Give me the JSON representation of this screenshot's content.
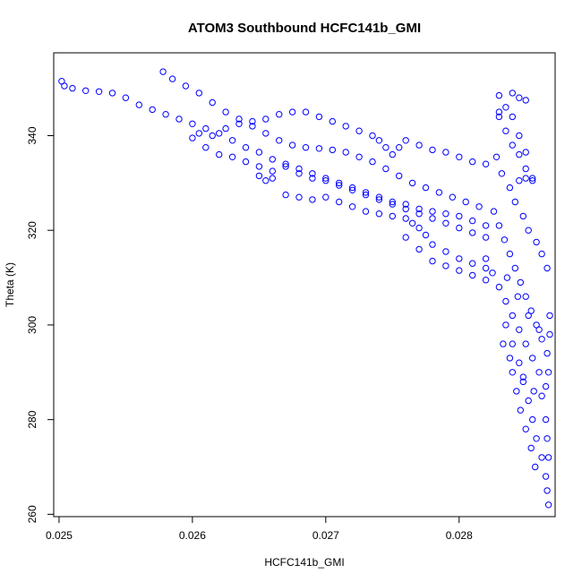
{
  "chart_data": {
    "type": "scatter",
    "title": "ATOM3 Southbound HCFC141b_GMI",
    "xlabel": "HCFC141b_GMI",
    "ylabel": "Theta (K)",
    "xlim": [
      0.02496,
      0.02872
    ],
    "ylim": [
      259.5,
      357.5
    ],
    "x_ticks": [
      0.025,
      0.026,
      0.027,
      0.028
    ],
    "x_tick_labels": [
      "0.025",
      "0.026",
      "0.027",
      "0.028"
    ],
    "y_ticks": [
      260,
      280,
      300,
      320,
      340
    ],
    "y_tick_labels": [
      "260",
      "280",
      "300",
      "320",
      "340"
    ],
    "grid": false,
    "marker": "open-circle",
    "series": [
      {
        "color": "#0000ff",
        "points": [
          [
            0.02502,
            351.5
          ],
          [
            0.02504,
            350.5
          ],
          [
            0.0251,
            350.0
          ],
          [
            0.0252,
            349.5
          ],
          [
            0.0253,
            349.3
          ],
          [
            0.0254,
            349.0
          ],
          [
            0.0255,
            348.0
          ],
          [
            0.0256,
            346.5
          ],
          [
            0.0257,
            345.5
          ],
          [
            0.0258,
            344.5
          ],
          [
            0.0259,
            343.5
          ],
          [
            0.026,
            342.5
          ],
          [
            0.0261,
            341.5
          ],
          [
            0.0262,
            340.5
          ],
          [
            0.0263,
            339.0
          ],
          [
            0.0264,
            337.5
          ],
          [
            0.0265,
            336.5
          ],
          [
            0.0266,
            335.0
          ],
          [
            0.0267,
            334.0
          ],
          [
            0.0268,
            333.0
          ],
          [
            0.0269,
            332.0
          ],
          [
            0.027,
            331.0
          ],
          [
            0.0271,
            330.0
          ],
          [
            0.0272,
            328.5
          ],
          [
            0.0273,
            327.5
          ],
          [
            0.0274,
            326.5
          ],
          [
            0.0275,
            325.5
          ],
          [
            0.0276,
            324.5
          ],
          [
            0.0277,
            323.5
          ],
          [
            0.0278,
            322.5
          ],
          [
            0.0279,
            321.5
          ],
          [
            0.028,
            320.5
          ],
          [
            0.0281,
            319.5
          ],
          [
            0.0282,
            318.5
          ],
          [
            0.02578,
            353.5
          ],
          [
            0.02585,
            352.0
          ],
          [
            0.02595,
            350.5
          ],
          [
            0.02605,
            349.0
          ],
          [
            0.02615,
            347.0
          ],
          [
            0.02625,
            345.0
          ],
          [
            0.02635,
            343.5
          ],
          [
            0.02645,
            342.0
          ],
          [
            0.02655,
            340.5
          ],
          [
            0.02665,
            339.0
          ],
          [
            0.02675,
            338.0
          ],
          [
            0.02685,
            337.5
          ],
          [
            0.02695,
            337.3
          ],
          [
            0.02705,
            337.0
          ],
          [
            0.02715,
            336.5
          ],
          [
            0.02725,
            335.5
          ],
          [
            0.02735,
            334.5
          ],
          [
            0.02745,
            333.0
          ],
          [
            0.02755,
            331.5
          ],
          [
            0.02765,
            330.0
          ],
          [
            0.02775,
            329.0
          ],
          [
            0.02785,
            328.0
          ],
          [
            0.02795,
            327.0
          ],
          [
            0.02805,
            326.0
          ],
          [
            0.02815,
            325.0
          ],
          [
            0.02605,
            340.5
          ],
          [
            0.02615,
            340.0
          ],
          [
            0.02625,
            341.5
          ],
          [
            0.02635,
            342.5
          ],
          [
            0.02645,
            343.0
          ],
          [
            0.02655,
            343.5
          ],
          [
            0.02665,
            344.5
          ],
          [
            0.02675,
            345.0
          ],
          [
            0.02685,
            345.0
          ],
          [
            0.02695,
            344.0
          ],
          [
            0.02705,
            343.0
          ],
          [
            0.02715,
            342.0
          ],
          [
            0.02725,
            341.0
          ],
          [
            0.02735,
            340.0
          ],
          [
            0.0274,
            339.0
          ],
          [
            0.02745,
            337.5
          ],
          [
            0.0275,
            336.0
          ],
          [
            0.02755,
            337.5
          ],
          [
            0.0276,
            339.0
          ],
          [
            0.0277,
            338.0
          ],
          [
            0.0278,
            337.0
          ],
          [
            0.0279,
            336.5
          ],
          [
            0.028,
            335.5
          ],
          [
            0.0281,
            334.5
          ],
          [
            0.0282,
            334.0
          ],
          [
            0.026,
            339.5
          ],
          [
            0.0261,
            337.5
          ],
          [
            0.0262,
            336.0
          ],
          [
            0.0263,
            335.5
          ],
          [
            0.0264,
            334.5
          ],
          [
            0.0265,
            333.5
          ],
          [
            0.0266,
            332.5
          ],
          [
            0.0267,
            333.5
          ],
          [
            0.0268,
            332.0
          ],
          [
            0.0269,
            331.0
          ],
          [
            0.027,
            330.5
          ],
          [
            0.0271,
            329.5
          ],
          [
            0.0272,
            329.0
          ],
          [
            0.0273,
            328.0
          ],
          [
            0.0274,
            327.0
          ],
          [
            0.0275,
            326.0
          ],
          [
            0.0276,
            325.5
          ],
          [
            0.0277,
            324.5
          ],
          [
            0.0278,
            324.0
          ],
          [
            0.0279,
            323.5
          ],
          [
            0.028,
            323.0
          ],
          [
            0.0281,
            322.0
          ],
          [
            0.0282,
            321.0
          ],
          [
            0.0265,
            331.5
          ],
          [
            0.02655,
            330.5
          ],
          [
            0.0266,
            331.0
          ],
          [
            0.0267,
            327.5
          ],
          [
            0.0268,
            327.0
          ],
          [
            0.0269,
            326.5
          ],
          [
            0.027,
            327.0
          ],
          [
            0.0271,
            326.0
          ],
          [
            0.0272,
            325.0
          ],
          [
            0.0273,
            324.0
          ],
          [
            0.0274,
            323.5
          ],
          [
            0.0275,
            323.0
          ],
          [
            0.0276,
            322.5
          ],
          [
            0.02765,
            321.5
          ],
          [
            0.0277,
            320.5
          ],
          [
            0.02775,
            319.0
          ],
          [
            0.0278,
            317.0
          ],
          [
            0.0279,
            315.5
          ],
          [
            0.028,
            314.0
          ],
          [
            0.0281,
            313.0
          ],
          [
            0.0282,
            312.0
          ],
          [
            0.0276,
            318.5
          ],
          [
            0.0277,
            316.0
          ],
          [
            0.0278,
            313.5
          ],
          [
            0.0279,
            312.5
          ],
          [
            0.028,
            311.5
          ],
          [
            0.0281,
            310.5
          ],
          [
            0.0282,
            309.5
          ],
          [
            0.0283,
            348.5
          ],
          [
            0.02835,
            346.0
          ],
          [
            0.0284,
            349.0
          ],
          [
            0.02845,
            348.0
          ],
          [
            0.0285,
            347.5
          ],
          [
            0.0283,
            344.0
          ],
          [
            0.02835,
            341.0
          ],
          [
            0.0284,
            338.0
          ],
          [
            0.02845,
            336.0
          ],
          [
            0.0285,
            333.0
          ],
          [
            0.02855,
            331.0
          ],
          [
            0.02828,
            335.5
          ],
          [
            0.02832,
            332.0
          ],
          [
            0.02838,
            329.0
          ],
          [
            0.02842,
            326.0
          ],
          [
            0.02848,
            323.0
          ],
          [
            0.02852,
            320.0
          ],
          [
            0.02858,
            317.5
          ],
          [
            0.02862,
            315.0
          ],
          [
            0.02866,
            312.0
          ],
          [
            0.02826,
            324.0
          ],
          [
            0.0283,
            321.0
          ],
          [
            0.02834,
            318.0
          ],
          [
            0.02838,
            315.0
          ],
          [
            0.02842,
            312.0
          ],
          [
            0.02846,
            309.0
          ],
          [
            0.0285,
            306.0
          ],
          [
            0.02854,
            303.0
          ],
          [
            0.02858,
            300.0
          ],
          [
            0.02862,
            297.0
          ],
          [
            0.02866,
            294.0
          ],
          [
            0.0282,
            314.0
          ],
          [
            0.02825,
            311.0
          ],
          [
            0.0283,
            308.0
          ],
          [
            0.02835,
            305.0
          ],
          [
            0.0284,
            302.0
          ],
          [
            0.02845,
            299.0
          ],
          [
            0.0285,
            296.0
          ],
          [
            0.02855,
            293.0
          ],
          [
            0.0286,
            290.0
          ],
          [
            0.02865,
            287.0
          ],
          [
            0.02835,
            300.0
          ],
          [
            0.0284,
            296.0
          ],
          [
            0.02845,
            292.0
          ],
          [
            0.02848,
            288.0
          ],
          [
            0.02852,
            284.0
          ],
          [
            0.02855,
            280.0
          ],
          [
            0.02858,
            276.0
          ],
          [
            0.02862,
            272.0
          ],
          [
            0.02865,
            268.0
          ],
          [
            0.02866,
            265.0
          ],
          [
            0.02867,
            262.0
          ],
          [
            0.0284,
            290.0
          ],
          [
            0.02843,
            286.0
          ],
          [
            0.02846,
            282.0
          ],
          [
            0.0285,
            278.0
          ],
          [
            0.02854,
            274.0
          ],
          [
            0.02857,
            270.0
          ],
          [
            0.02862,
            285.0
          ],
          [
            0.02865,
            280.0
          ],
          [
            0.02866,
            276.0
          ],
          [
            0.02867,
            272.0
          ],
          [
            0.02868,
            298.0
          ],
          [
            0.02868,
            302.0
          ],
          [
            0.02867,
            290.0
          ],
          [
            0.02845,
            330.5
          ],
          [
            0.0285,
            331.0
          ],
          [
            0.02855,
            330.5
          ],
          [
            0.0283,
            345.0
          ],
          [
            0.0284,
            344.0
          ],
          [
            0.02845,
            340.0
          ],
          [
            0.0285,
            336.5
          ],
          [
            0.02836,
            310.0
          ],
          [
            0.02844,
            306.0
          ],
          [
            0.02852,
            302.0
          ],
          [
            0.0286,
            299.0
          ],
          [
            0.02833,
            296.0
          ],
          [
            0.02838,
            293.0
          ],
          [
            0.02848,
            289.0
          ],
          [
            0.02856,
            286.0
          ]
        ]
      }
    ]
  }
}
